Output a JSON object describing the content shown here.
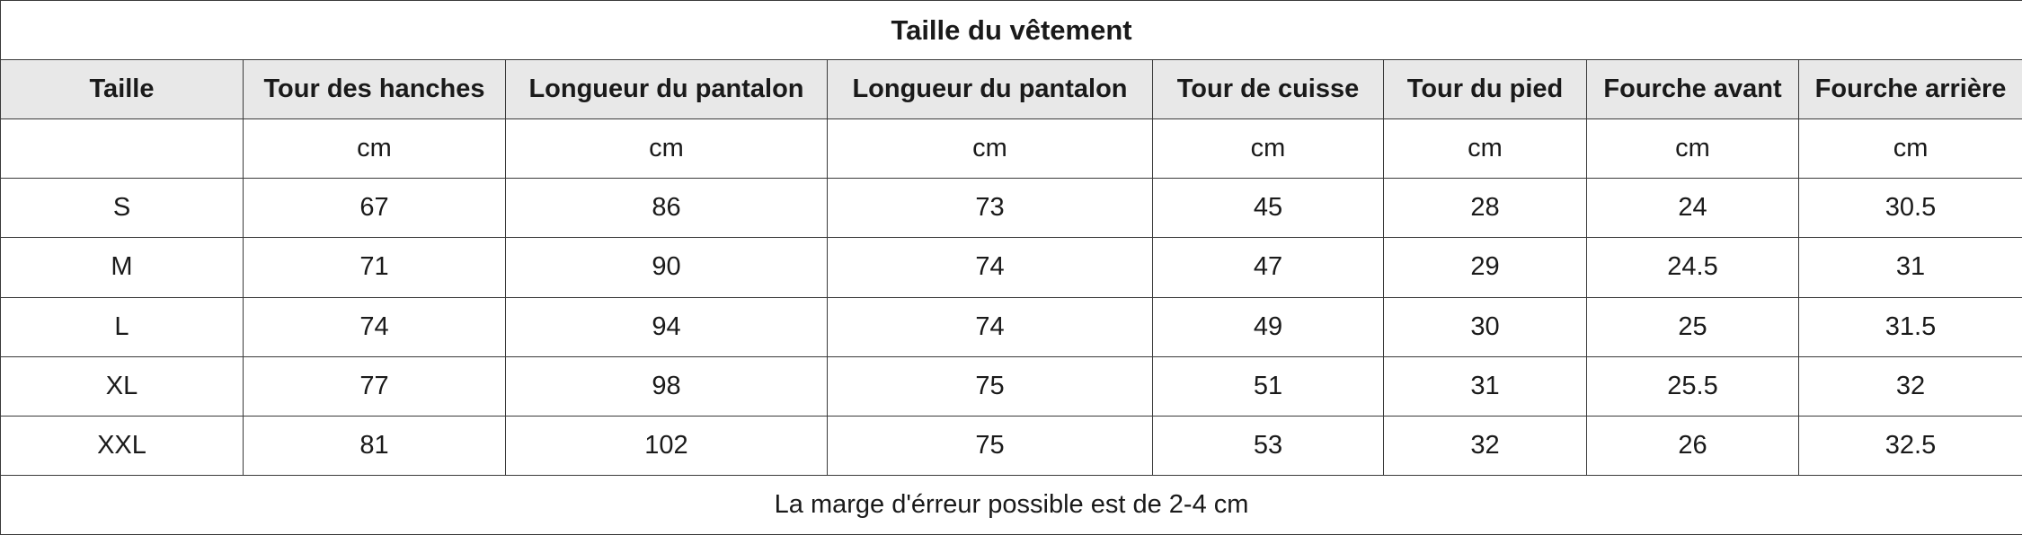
{
  "title": "Taille du vêtement",
  "headers": [
    "Taille",
    "Tour des hanches",
    "Longueur du pantalon",
    "Longueur du pantalon",
    "Tour de cuisse",
    "Tour du pied",
    "Fourche avant",
    "Fourche arrière"
  ],
  "units": [
    "",
    "cm",
    "cm",
    "cm",
    "cm",
    "cm",
    "cm",
    "cm"
  ],
  "rows": [
    [
      "S",
      "67",
      "86",
      "73",
      "45",
      "28",
      "24",
      "30.5"
    ],
    [
      "M",
      "71",
      "90",
      "74",
      "47",
      "29",
      "24.5",
      "31"
    ],
    [
      "L",
      "74",
      "94",
      "74",
      "49",
      "30",
      "25",
      "31.5"
    ],
    [
      "XL",
      "77",
      "98",
      "75",
      "51",
      "31",
      "25.5",
      "32"
    ],
    [
      "XXL",
      "81",
      "102",
      "75",
      "53",
      "32",
      "26",
      "32.5"
    ]
  ],
  "note": "La marge d'érreur possible est de 2-4 cm",
  "colors": {
    "header_bg": "#e8e8e8",
    "border": "#3a3a3a"
  }
}
